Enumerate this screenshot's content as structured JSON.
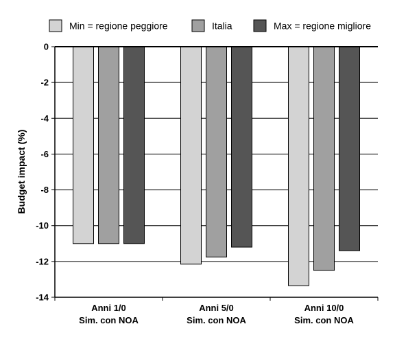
{
  "chart_data": {
    "type": "bar",
    "categories": [
      [
        "Anni 1/0",
        "Sim. con NOA"
      ],
      [
        "Anni 5/0",
        "Sim. con NOA"
      ],
      [
        "Anni 10/0",
        "Sim. con NOA"
      ]
    ],
    "series": [
      {
        "name": "Min = regione peggiore",
        "color": "#d3d3d3",
        "values": [
          -11.0,
          -12.15,
          -13.35
        ]
      },
      {
        "name": "Italia",
        "color": "#a0a0a0",
        "values": [
          -11.0,
          -11.75,
          -12.5
        ]
      },
      {
        "name": "Max = regione migliore",
        "color": "#555555",
        "values": [
          -11.0,
          -11.2,
          -11.4
        ]
      }
    ],
    "ylabel": "Budget impact (%)",
    "xlabel": "",
    "ylim": [
      -14,
      0
    ],
    "yticks": [
      0,
      -2,
      -4,
      -6,
      -8,
      -10,
      -12,
      -14
    ],
    "grid": true,
    "legend_position": "top"
  }
}
